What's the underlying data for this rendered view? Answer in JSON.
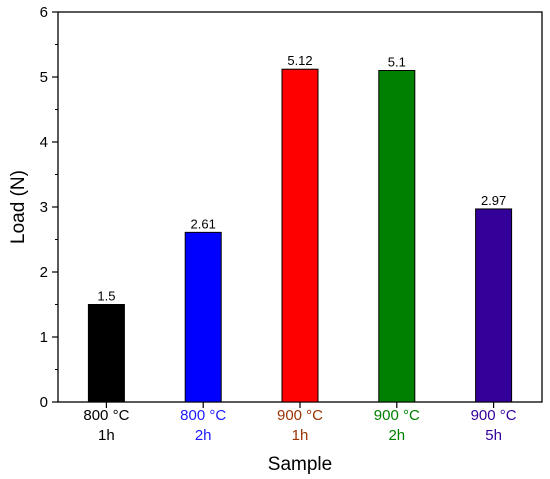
{
  "chart_data": {
    "type": "bar",
    "categories": [
      {
        "line1": "800 °C",
        "line2": "1h",
        "color": "#000000"
      },
      {
        "line1": "800 °C",
        "line2": "2h",
        "color": "#1a1aff"
      },
      {
        "line1": "900 °C",
        "line2": "1h",
        "color": "#993300"
      },
      {
        "line1": "900 °C",
        "line2": "2h",
        "color": "#008000"
      },
      {
        "line1": "900 °C",
        "line2": "5h",
        "color": "#330099"
      }
    ],
    "values": [
      1.5,
      2.61,
      5.12,
      5.1,
      2.97
    ],
    "value_labels": [
      "1.5",
      "2.61",
      "5.12",
      "5.1",
      "2.97"
    ],
    "bar_colors": [
      "#000000",
      "#0000ff",
      "#ff0000",
      "#008000",
      "#330099"
    ],
    "xlabel": "Sample",
    "ylabel": "Load (N)",
    "ylim": [
      0,
      6
    ],
    "yticks": [
      "0",
      "1",
      "2",
      "3",
      "4",
      "5",
      "6"
    ],
    "grid": false
  }
}
